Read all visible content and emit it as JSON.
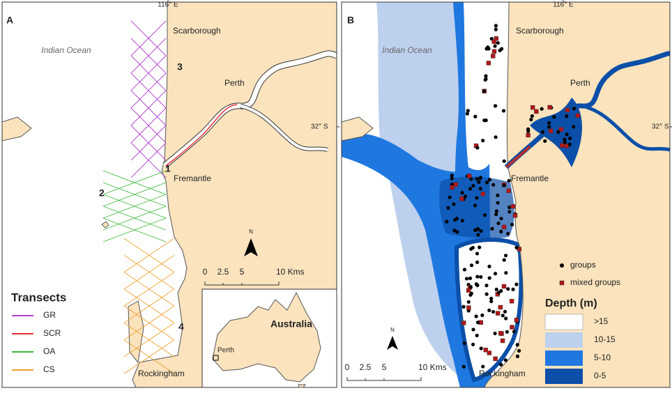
{
  "panel_a": {
    "label": "A",
    "lon_label": "116° E",
    "lat_label": "32° S",
    "ocean_label": "Indian Ocean",
    "places": {
      "scarborough": "Scarborough",
      "perth": "Perth",
      "fremantle": "Fremantle",
      "rockingham": "Rockingham"
    },
    "zone_numbers": [
      "1",
      "2",
      "3",
      "4"
    ],
    "legend": {
      "title": "Transects",
      "items": [
        "GR",
        "SCR",
        "OA",
        "CS"
      ]
    },
    "scale": [
      "0",
      "2.5",
      "5",
      "10 Kms"
    ],
    "north": "N",
    "inset": {
      "country": "Australia",
      "city": "Perth"
    }
  },
  "panel_b": {
    "label": "B",
    "lon_label": "116° E",
    "lat_label": "32° S",
    "ocean_label": "Indian Ocean",
    "places": {
      "scarborough": "Scarborough",
      "perth": "Perth",
      "fremantle": "Fremantle",
      "rockingham": "Rockingham"
    },
    "symbols": [
      "groups",
      "mixed groups"
    ],
    "depth_legend": {
      "title": "Depth (m)",
      "items": [
        ">15",
        "10-15",
        "5-10",
        "0-5"
      ]
    },
    "scale": [
      "0",
      "2.5",
      "5",
      "10 Kms"
    ],
    "north": "N"
  }
}
